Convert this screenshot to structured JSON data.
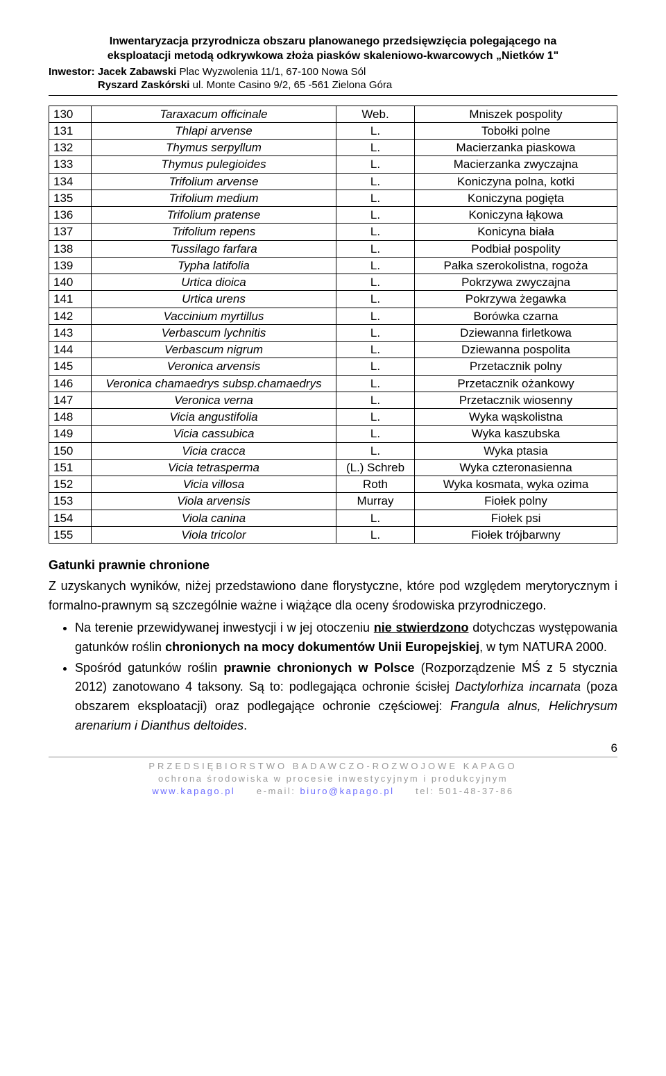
{
  "header": {
    "title_line1": "Inwentaryzacja przyrodnicza obszaru planowanego przedsięwzięcia polegającego na",
    "title_line2": "eksploatacji metodą odkrywkowa złoża piasków skaleniowo-kwarcowych „Nietków 1\"",
    "investor_label": "Inwestor:",
    "investor1_name": "Jacek Zabawski",
    "investor1_addr": "Plac Wyzwolenia 11/1, 67-100 Nowa Sól",
    "investor2_name": "Ryszard Zaskórski",
    "investor2_addr": "ul. Monte Casino 9/2, 65 -561 Zielona Góra"
  },
  "species_rows": [
    {
      "n": "130",
      "latin": "Taraxacum officinale",
      "auth": "Web.",
      "pl": "Mniszek pospolity"
    },
    {
      "n": "131",
      "latin": "Thlapi arvense",
      "auth": "L.",
      "pl": "Tobołki polne"
    },
    {
      "n": "132",
      "latin": "Thymus serpyllum",
      "auth": "L.",
      "pl": "Macierzanka piaskowa"
    },
    {
      "n": "133",
      "latin": "Thymus pulegioides",
      "auth": "L.",
      "pl": "Macierzanka zwyczajna"
    },
    {
      "n": "134",
      "latin": "Trifolium arvense",
      "auth": "L.",
      "pl": "Koniczyna polna, kotki"
    },
    {
      "n": "135",
      "latin": "Trifolium medium",
      "auth": "L.",
      "pl": "Koniczyna pogięta"
    },
    {
      "n": "136",
      "latin": "Trifolium pratense",
      "auth": "L.",
      "pl": "Koniczyna łąkowa"
    },
    {
      "n": "137",
      "latin": "Trifolium repens",
      "auth": "L.",
      "pl": "Konicyna biała"
    },
    {
      "n": "138",
      "latin": "Tussilago farfara",
      "auth": "L.",
      "pl": "Podbiał pospolity"
    },
    {
      "n": "139",
      "latin": "Typha latifolia",
      "auth": "L.",
      "pl": "Pałka szerokolistna, rogoża"
    },
    {
      "n": "140",
      "latin": "Urtica dioica",
      "auth": "L.",
      "pl": "Pokrzywa zwyczajna"
    },
    {
      "n": "141",
      "latin": "Urtica urens",
      "auth": "L.",
      "pl": "Pokrzywa żegawka"
    },
    {
      "n": "142",
      "latin": "Vaccinium myrtillus",
      "auth": "L.",
      "pl": "Borówka czarna"
    },
    {
      "n": "143",
      "latin": "Verbascum lychnitis",
      "auth": "L.",
      "pl": "Dziewanna firletkowa"
    },
    {
      "n": "144",
      "latin": "Verbascum nigrum",
      "auth": "L.",
      "pl": "Dziewanna pospolita"
    },
    {
      "n": "145",
      "latin": "Veronica arvensis",
      "auth": "L.",
      "pl": "Przetacznik polny"
    },
    {
      "n": "146",
      "latin": "Veronica chamaedrys subsp.chamaedrys",
      "auth": "L.",
      "pl": "Przetacznik ożankowy"
    },
    {
      "n": "147",
      "latin": "Veronica verna",
      "auth": "L.",
      "pl": "Przetacznik wiosenny"
    },
    {
      "n": "148",
      "latin": "Vicia angustifolia",
      "auth": "L.",
      "pl": "Wyka wąskolistna"
    },
    {
      "n": "149",
      "latin": "Vicia cassubica",
      "auth": "L.",
      "pl": "Wyka kaszubska"
    },
    {
      "n": "150",
      "latin": "Vicia cracca",
      "auth": "L.",
      "pl": "Wyka ptasia"
    },
    {
      "n": "151",
      "latin": "Vicia tetrasperma",
      "auth": "(L.) Schreb",
      "pl": "Wyka czteronasienna"
    },
    {
      "n": "152",
      "latin": "Vicia villosa",
      "auth": "Roth",
      "pl": "Wyka kosmata, wyka ozima"
    },
    {
      "n": "153",
      "latin": "Viola arvensis",
      "auth": "Murray",
      "pl": "Fiołek polny"
    },
    {
      "n": "154",
      "latin": "Viola canina",
      "auth": "L.",
      "pl": "Fiołek psi"
    },
    {
      "n": "155",
      "latin": "Viola tricolor",
      "auth": "L.",
      "pl": "Fiołek trójbarwny"
    }
  ],
  "section": {
    "heading": "Gatunki prawnie chronione",
    "para1": "Z uzyskanych wyników, niżej przedstawiono dane florystyczne, które pod względem merytorycznym i formalno-prawnym są szczególnie ważne i wiążące dla oceny środowiska przyrodniczego.",
    "bullet1_pre": "Na terenie przewidywanej inwestycji i w jej otoczeniu ",
    "bullet1_u": "nie stwierdzono",
    "bullet1_mid": " dotychczas występowania gatunków roślin ",
    "bullet1_b1": "chronionych na mocy dokumentów Unii Europejskiej",
    "bullet1_end": ", w tym NATURA 2000.",
    "bullet2_pre": "Spośród gatunków roślin ",
    "bullet2_b1": "prawnie chronionych w Polsce",
    "bullet2_mid": " (Rozporządzenie MŚ z 5 stycznia 2012) zanotowano 4 taksony. Są to: podlegająca ochronie ścisłej ",
    "bullet2_i1": "Dactylorhiza incarnata",
    "bullet2_mid2": " (poza obszarem eksploatacji) oraz podlegające ochronie częściowej: ",
    "bullet2_i2": "Frangula alnus, Helichrysum arenarium i Dianthus deltoides",
    "bullet2_end": "."
  },
  "page_number": "6",
  "footer": {
    "line1": "PRZEDSIĘBIORSTWO BADAWCZO-ROZWOJOWE KAPAGO",
    "line2": "ochrona środowiska w procesie inwestycyjnym i produkcyjnym",
    "www": "www.kapago.pl",
    "email_label": "e-mail:",
    "email": "biuro@kapago.pl",
    "tel_label": "tel:",
    "tel": "501-48-37-86"
  }
}
